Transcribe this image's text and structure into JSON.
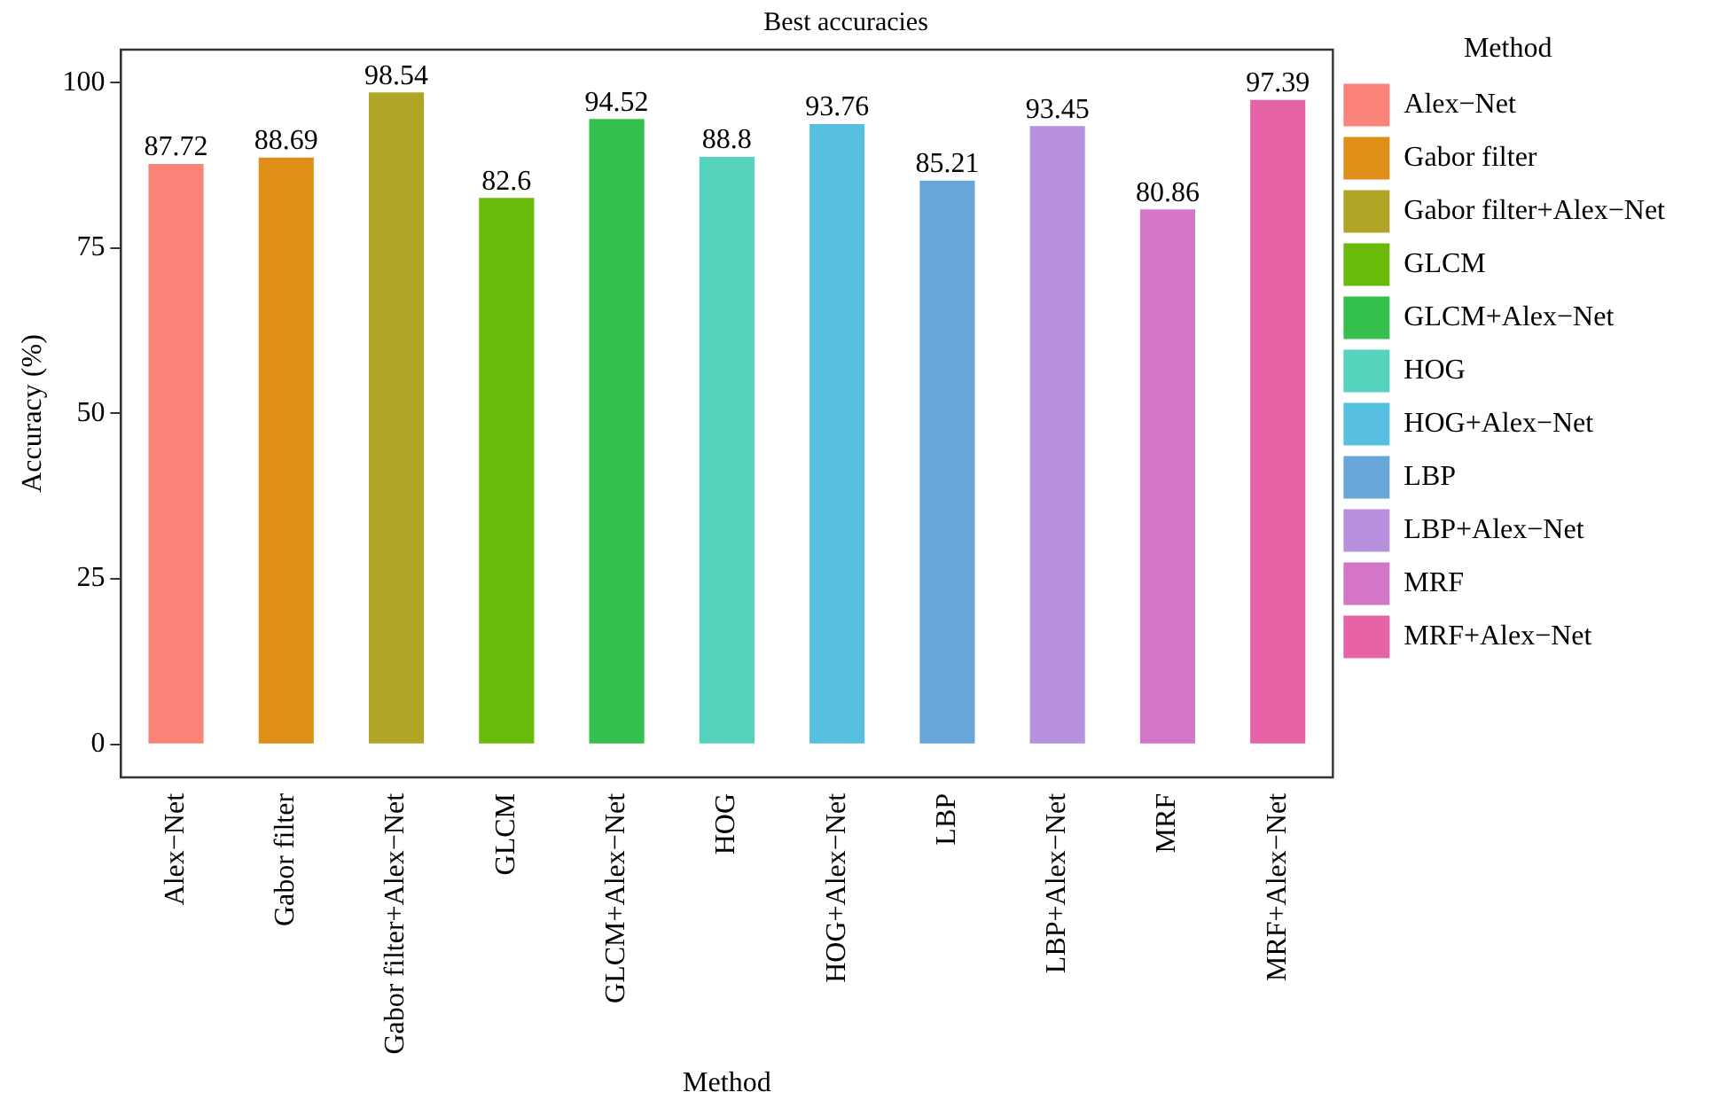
{
  "chart_data": {
    "type": "bar",
    "title": "Best accuracies",
    "xlabel": "Method",
    "ylabel": "Accuracy (%)",
    "legend_title": "Method",
    "categories": [
      "Alex−Net",
      "Gabor filter",
      "Gabor filter+Alex−Net",
      "GLCM",
      "GLCM+Alex−Net",
      "HOG",
      "HOG+Alex−Net",
      "LBP",
      "LBP+Alex−Net",
      "MRF",
      "MRF+Alex−Net"
    ],
    "series": [
      {
        "name": "Alex−Net",
        "color": "#fb847a",
        "values": [
          87.72,
          null,
          null,
          null,
          null,
          null,
          null,
          null,
          null,
          null,
          null
        ]
      },
      {
        "name": "Gabor filter",
        "color": "#df8f17",
        "values": [
          null,
          88.69,
          null,
          null,
          null,
          null,
          null,
          null,
          null,
          null,
          null
        ]
      },
      {
        "name": "Gabor filter+Alex−Net",
        "color": "#b0a524",
        "values": [
          null,
          null,
          98.54,
          null,
          null,
          null,
          null,
          null,
          null,
          null,
          null
        ]
      },
      {
        "name": "GLCM",
        "color": "#6aba0a",
        "values": [
          null,
          null,
          null,
          82.6,
          null,
          null,
          null,
          null,
          null,
          null,
          null
        ]
      },
      {
        "name": "GLCM+Alex−Net",
        "color": "#35c04d",
        "values": [
          null,
          null,
          null,
          null,
          94.52,
          null,
          null,
          null,
          null,
          null,
          null
        ]
      },
      {
        "name": "HOG",
        "color": "#55d3bc",
        "values": [
          null,
          null,
          null,
          null,
          null,
          88.8,
          null,
          null,
          null,
          null,
          null
        ]
      },
      {
        "name": "HOG+Alex−Net",
        "color": "#57c0e0",
        "values": [
          null,
          null,
          null,
          null,
          null,
          null,
          93.76,
          null,
          null,
          null,
          null
        ]
      },
      {
        "name": "LBP",
        "color": "#68a6d9",
        "values": [
          null,
          null,
          null,
          null,
          null,
          null,
          null,
          85.21,
          null,
          null,
          null
        ]
      },
      {
        "name": "LBP+Alex−Net",
        "color": "#b791de",
        "values": [
          null,
          null,
          null,
          null,
          null,
          null,
          null,
          null,
          93.45,
          null,
          null
        ]
      },
      {
        "name": "MRF",
        "color": "#d476c8",
        "values": [
          null,
          null,
          null,
          null,
          null,
          null,
          null,
          null,
          null,
          80.86,
          null
        ]
      },
      {
        "name": "MRF+Alex−Net",
        "color": "#e563a6",
        "values": [
          null,
          null,
          null,
          null,
          null,
          null,
          null,
          null,
          null,
          null,
          97.39
        ]
      }
    ],
    "ylim": [
      -5,
      105
    ],
    "yticks": [
      0,
      25,
      50,
      75,
      100
    ],
    "grid": false,
    "legend": "right",
    "data_labels": true
  }
}
